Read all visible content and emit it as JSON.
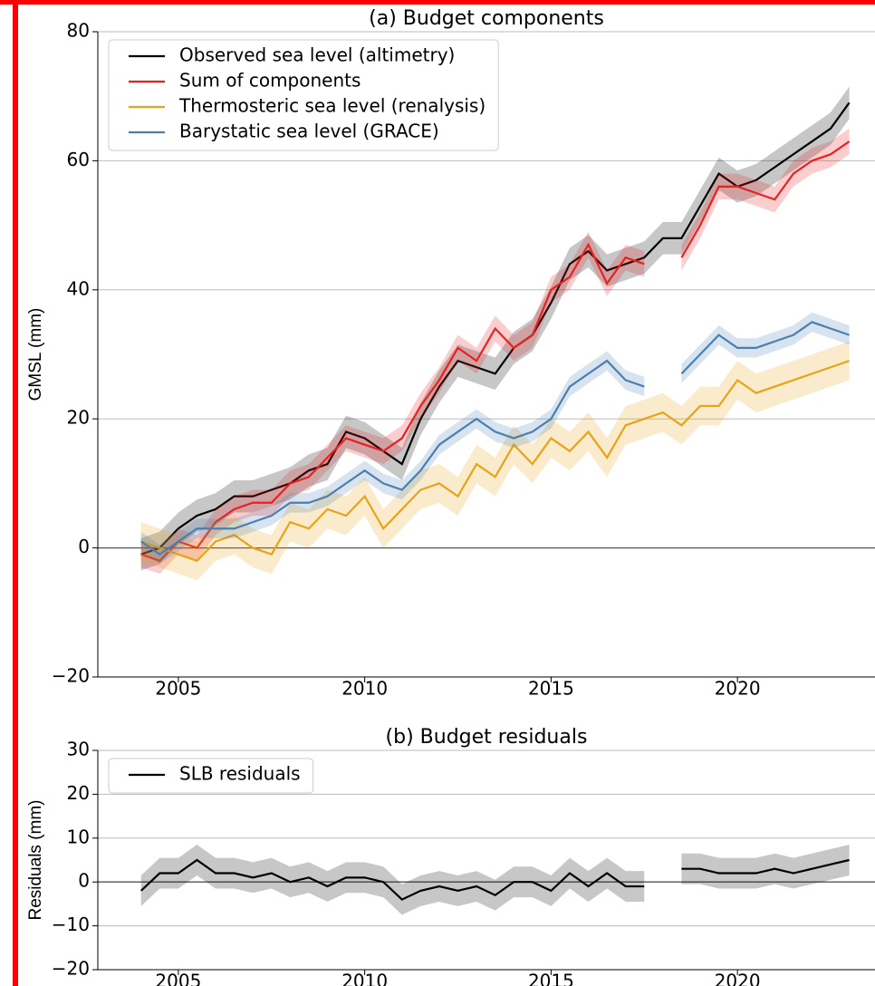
{
  "chart_data": [
    {
      "type": "line",
      "title": "(a) Budget components",
      "ylabel": "GMSL (mm)",
      "x": [
        2004,
        2004.5,
        2005,
        2005.5,
        2006,
        2006.5,
        2007,
        2007.5,
        2008,
        2008.5,
        2009,
        2009.5,
        2010,
        2010.5,
        2011,
        2011.5,
        2012,
        2012.5,
        2013,
        2013.5,
        2014,
        2014.5,
        2015,
        2015.5,
        2016,
        2016.5,
        2017,
        2017.5,
        2018,
        2018.5,
        2019,
        2019.5,
        2020,
        2020.5,
        2021,
        2021.5,
        2022,
        2022.5,
        2023
      ],
      "series": [
        {
          "name": "Observed sea level (altimetry)",
          "color": "#000000",
          "uncertainty": 2.5,
          "values": [
            -1,
            0,
            3,
            5,
            6,
            8,
            8,
            9,
            10,
            12,
            13,
            18,
            17,
            15,
            13,
            20,
            25,
            29,
            28,
            27,
            31,
            33,
            38,
            44,
            46,
            43,
            44,
            45,
            48,
            48,
            53,
            58,
            56,
            57,
            59,
            61,
            63,
            65,
            69
          ]
        },
        {
          "name": "Sum of components",
          "color": "#e8221f",
          "uncertainty": 2,
          "values": [
            -1,
            -2,
            1,
            0,
            4,
            6,
            7,
            7,
            10,
            11,
            14,
            17,
            16,
            15,
            17,
            22,
            26,
            31,
            29,
            34,
            31,
            33,
            40,
            42,
            47,
            41,
            45,
            44,
            null,
            45,
            50,
            56,
            56,
            55,
            54,
            58,
            60,
            61,
            63
          ]
        },
        {
          "name": "Thermosteric sea level (renalysis)",
          "color": "#e8a317",
          "uncertainty": 3,
          "values": [
            1,
            0,
            -1,
            -2,
            1,
            2,
            0,
            -1,
            4,
            3,
            6,
            5,
            8,
            3,
            6,
            9,
            10,
            8,
            13,
            11,
            16,
            13,
            17,
            15,
            18,
            14,
            19,
            20,
            21,
            19,
            22,
            22,
            26,
            24,
            25,
            26,
            27,
            28,
            29
          ]
        },
        {
          "name": "Barystatic sea level (GRACE)",
          "color": "#4a7fb0",
          "uncertainty": 1.5,
          "values": [
            1,
            -1,
            1,
            3,
            3,
            3,
            4,
            5,
            7,
            7,
            8,
            10,
            12,
            10,
            9,
            12,
            16,
            18,
            20,
            18,
            17,
            18,
            20,
            25,
            27,
            29,
            26,
            25,
            null,
            27,
            30,
            33,
            31,
            31,
            32,
            33,
            35,
            34,
            33
          ]
        }
      ],
      "xlim": [
        2002.84,
        2023.69
      ],
      "xticks": [
        2005,
        2010,
        2015,
        2020
      ],
      "ylim": [
        -20,
        80
      ],
      "yticks": [
        {
          "value": -20,
          "label": "−20"
        },
        0,
        20,
        40,
        60,
        80
      ],
      "grid": true,
      "legend": "upper left"
    },
    {
      "type": "line",
      "title": "(b) Budget residuals",
      "ylabel": "Residuals (mm)",
      "x": [
        2004,
        2004.5,
        2005,
        2005.5,
        2006,
        2006.5,
        2007,
        2007.5,
        2008,
        2008.5,
        2009,
        2009.5,
        2010,
        2010.5,
        2011,
        2011.5,
        2012,
        2012.5,
        2013,
        2013.5,
        2014,
        2014.5,
        2015,
        2015.5,
        2016,
        2016.5,
        2017,
        2017.5,
        2018,
        2018.5,
        2019,
        2019.5,
        2020,
        2020.5,
        2021,
        2021.5,
        2022,
        2022.5,
        2023
      ],
      "series": [
        {
          "name": "SLB residuals",
          "color": "#000000",
          "uncertainty": 3.5,
          "values": [
            -2,
            2,
            2,
            5,
            2,
            2,
            1,
            2,
            0,
            1,
            -1,
            1,
            1,
            0,
            -4,
            -2,
            -1,
            -2,
            -1,
            -3,
            0,
            0,
            -2,
            2,
            -1,
            2,
            -1,
            -1,
            null,
            3,
            3,
            2,
            2,
            2,
            3,
            2,
            3,
            4,
            5
          ]
        }
      ],
      "xlim": [
        2002.84,
        2023.69
      ],
      "xticks": [
        2005,
        2010,
        2015,
        2020
      ],
      "ylim": [
        -20,
        30
      ],
      "yticks": [
        {
          "value": -20,
          "label": "−20"
        },
        {
          "value": -10,
          "label": "−10"
        },
        0,
        10,
        20,
        30
      ],
      "grid": true,
      "legend": "upper left"
    }
  ]
}
